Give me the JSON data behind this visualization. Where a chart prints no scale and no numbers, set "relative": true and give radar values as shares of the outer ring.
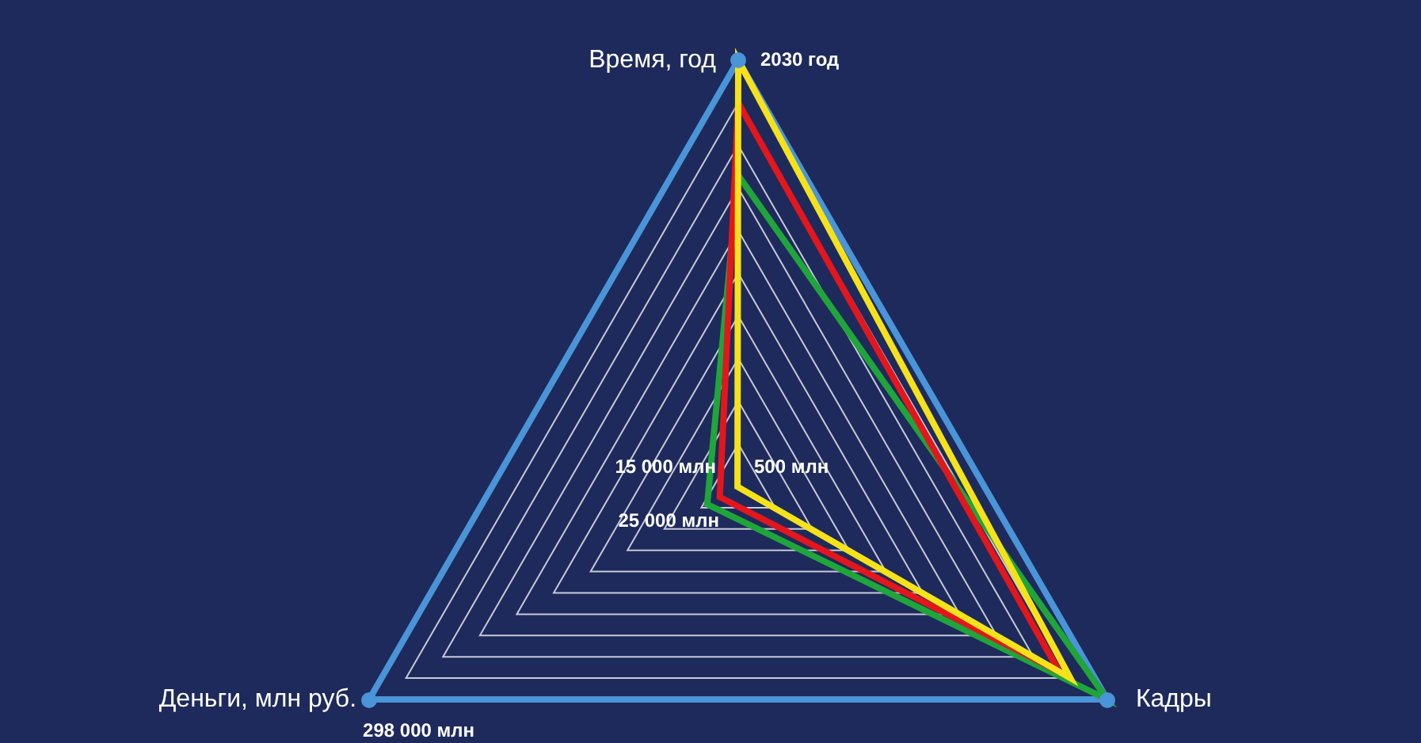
{
  "chart_data": {
    "type": "radar",
    "relative": true,
    "grid": true,
    "categories": [
      "Время, год",
      "Кадры",
      "Деньги, млн руб."
    ],
    "series": [
      {
        "color": "#1fa53a",
        "values": [
          0.73,
          1,
          0.084
        ]
      },
      {
        "color": "#e3161b",
        "values": [
          0.9,
          0.87,
          0.05
        ]
      },
      {
        "color": "#f5e21a",
        "values": [
          1,
          0.9,
          0.002
        ]
      }
    ],
    "annotations": [
      "2030 год",
      "298 000 млн",
      "25 000 млн",
      "15 000 млн",
      "500 млн"
    ]
  }
}
